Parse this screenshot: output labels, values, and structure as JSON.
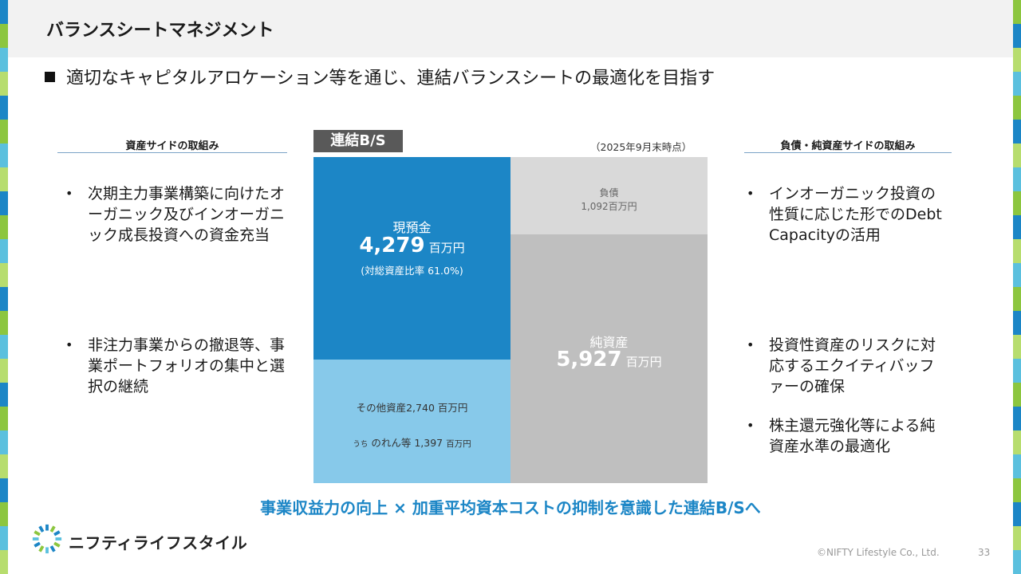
{
  "header": {
    "title": "バランスシートマネジメント"
  },
  "lead": {
    "text": "適切なキャピタルアロケーション等を通じ、連結バランスシートの最適化を目指す"
  },
  "asset_side": {
    "heading": "資産サイドの取組み",
    "bullets": [
      "次期主力事業構築に向けたオーガニック及びインオーガニック成長投資への資金充当",
      "非注力事業からの撤退等、事業ポートフォリオの集中と選択の継続"
    ]
  },
  "liability_side": {
    "heading": "負債・純資産サイドの取組み",
    "bullets": [
      "インオーガニック投資の性質に応じた形でのDebt Capacityの活用",
      "投資性資産のリスクに対応するエクイティバッファーの確保",
      "株主還元強化等による純資産水準の最適化"
    ]
  },
  "balance_sheet": {
    "label": "連結B/S",
    "as_of": "（2025年9月末時点）",
    "cash": {
      "name": "現預金",
      "value": "4,279",
      "unit": "百万円",
      "note": "(対総資産比率 61.0%)"
    },
    "other_assets": {
      "line1": "その他資産2,740 百万円",
      "prefix": "うち",
      "line2": "のれん等 1,397",
      "unit": "百万円"
    },
    "liabilities": {
      "name": "負債",
      "value": "1,092百万円"
    },
    "equity": {
      "name": "純資産",
      "value": "5,927",
      "unit": "百万円"
    }
  },
  "footer": {
    "message": "事業収益力の向上 × 加重平均資本コストの抑制を意識した連結B/Sへ",
    "company": "ニフティライフスタイル",
    "copyright": "©NIFTY Lifestyle Co., Ltd.",
    "page": "33"
  },
  "colors": {
    "accent": "#1c86c6",
    "light_blue": "#87c9ea",
    "gray_light": "#d9d9d9",
    "gray": "#bfbfbf"
  }
}
